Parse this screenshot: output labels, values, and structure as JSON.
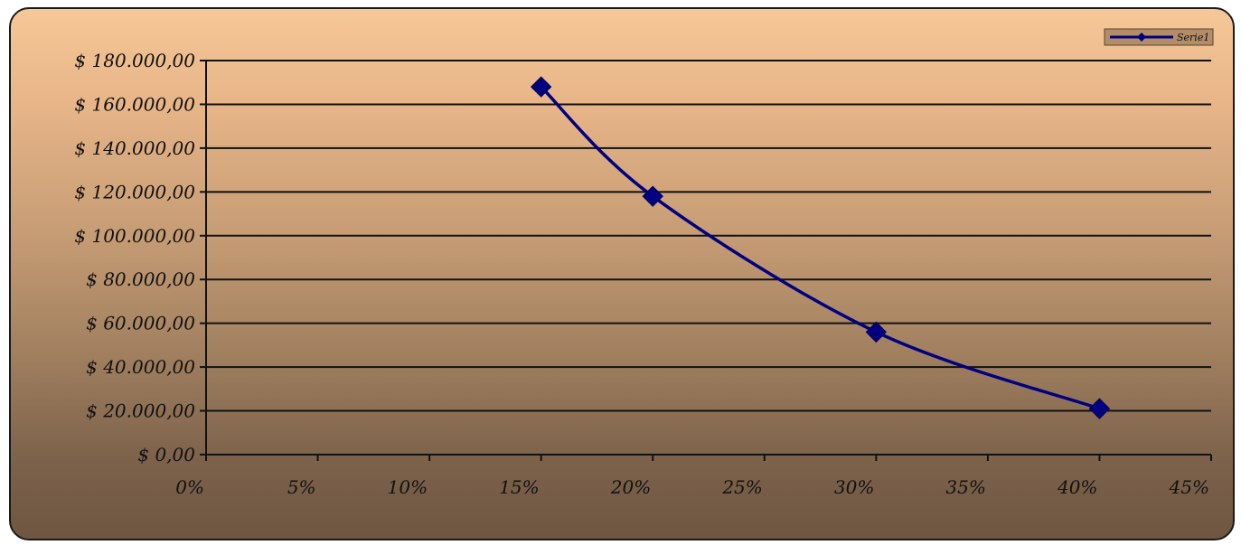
{
  "chart_data": {
    "type": "line",
    "title": "",
    "xlabel": "",
    "ylabel": "",
    "x_ticks": [
      "0%",
      "5%",
      "10%",
      "15%",
      "20%",
      "25%",
      "30%",
      "35%",
      "40%",
      "45%"
    ],
    "y_ticks": [
      "$ 0,00",
      "$ 20.000,00",
      "$ 40.000,00",
      "$ 60.000,00",
      "$ 80.000,00",
      "$ 100.000,00",
      "$ 120.000,00",
      "$ 140.000,00",
      "$ 160.000,00",
      "$ 180.000,00"
    ],
    "xlim": [
      0,
      45
    ],
    "ylim": [
      0,
      180000
    ],
    "grid": "horizontal",
    "legend_position": "top-right",
    "smooth": true,
    "series": [
      {
        "name": "Serie1",
        "color": "#000080",
        "marker": "diamond",
        "x": [
          15,
          20,
          30,
          40
        ],
        "y": [
          168000,
          118000,
          56000,
          21000
        ]
      }
    ]
  }
}
